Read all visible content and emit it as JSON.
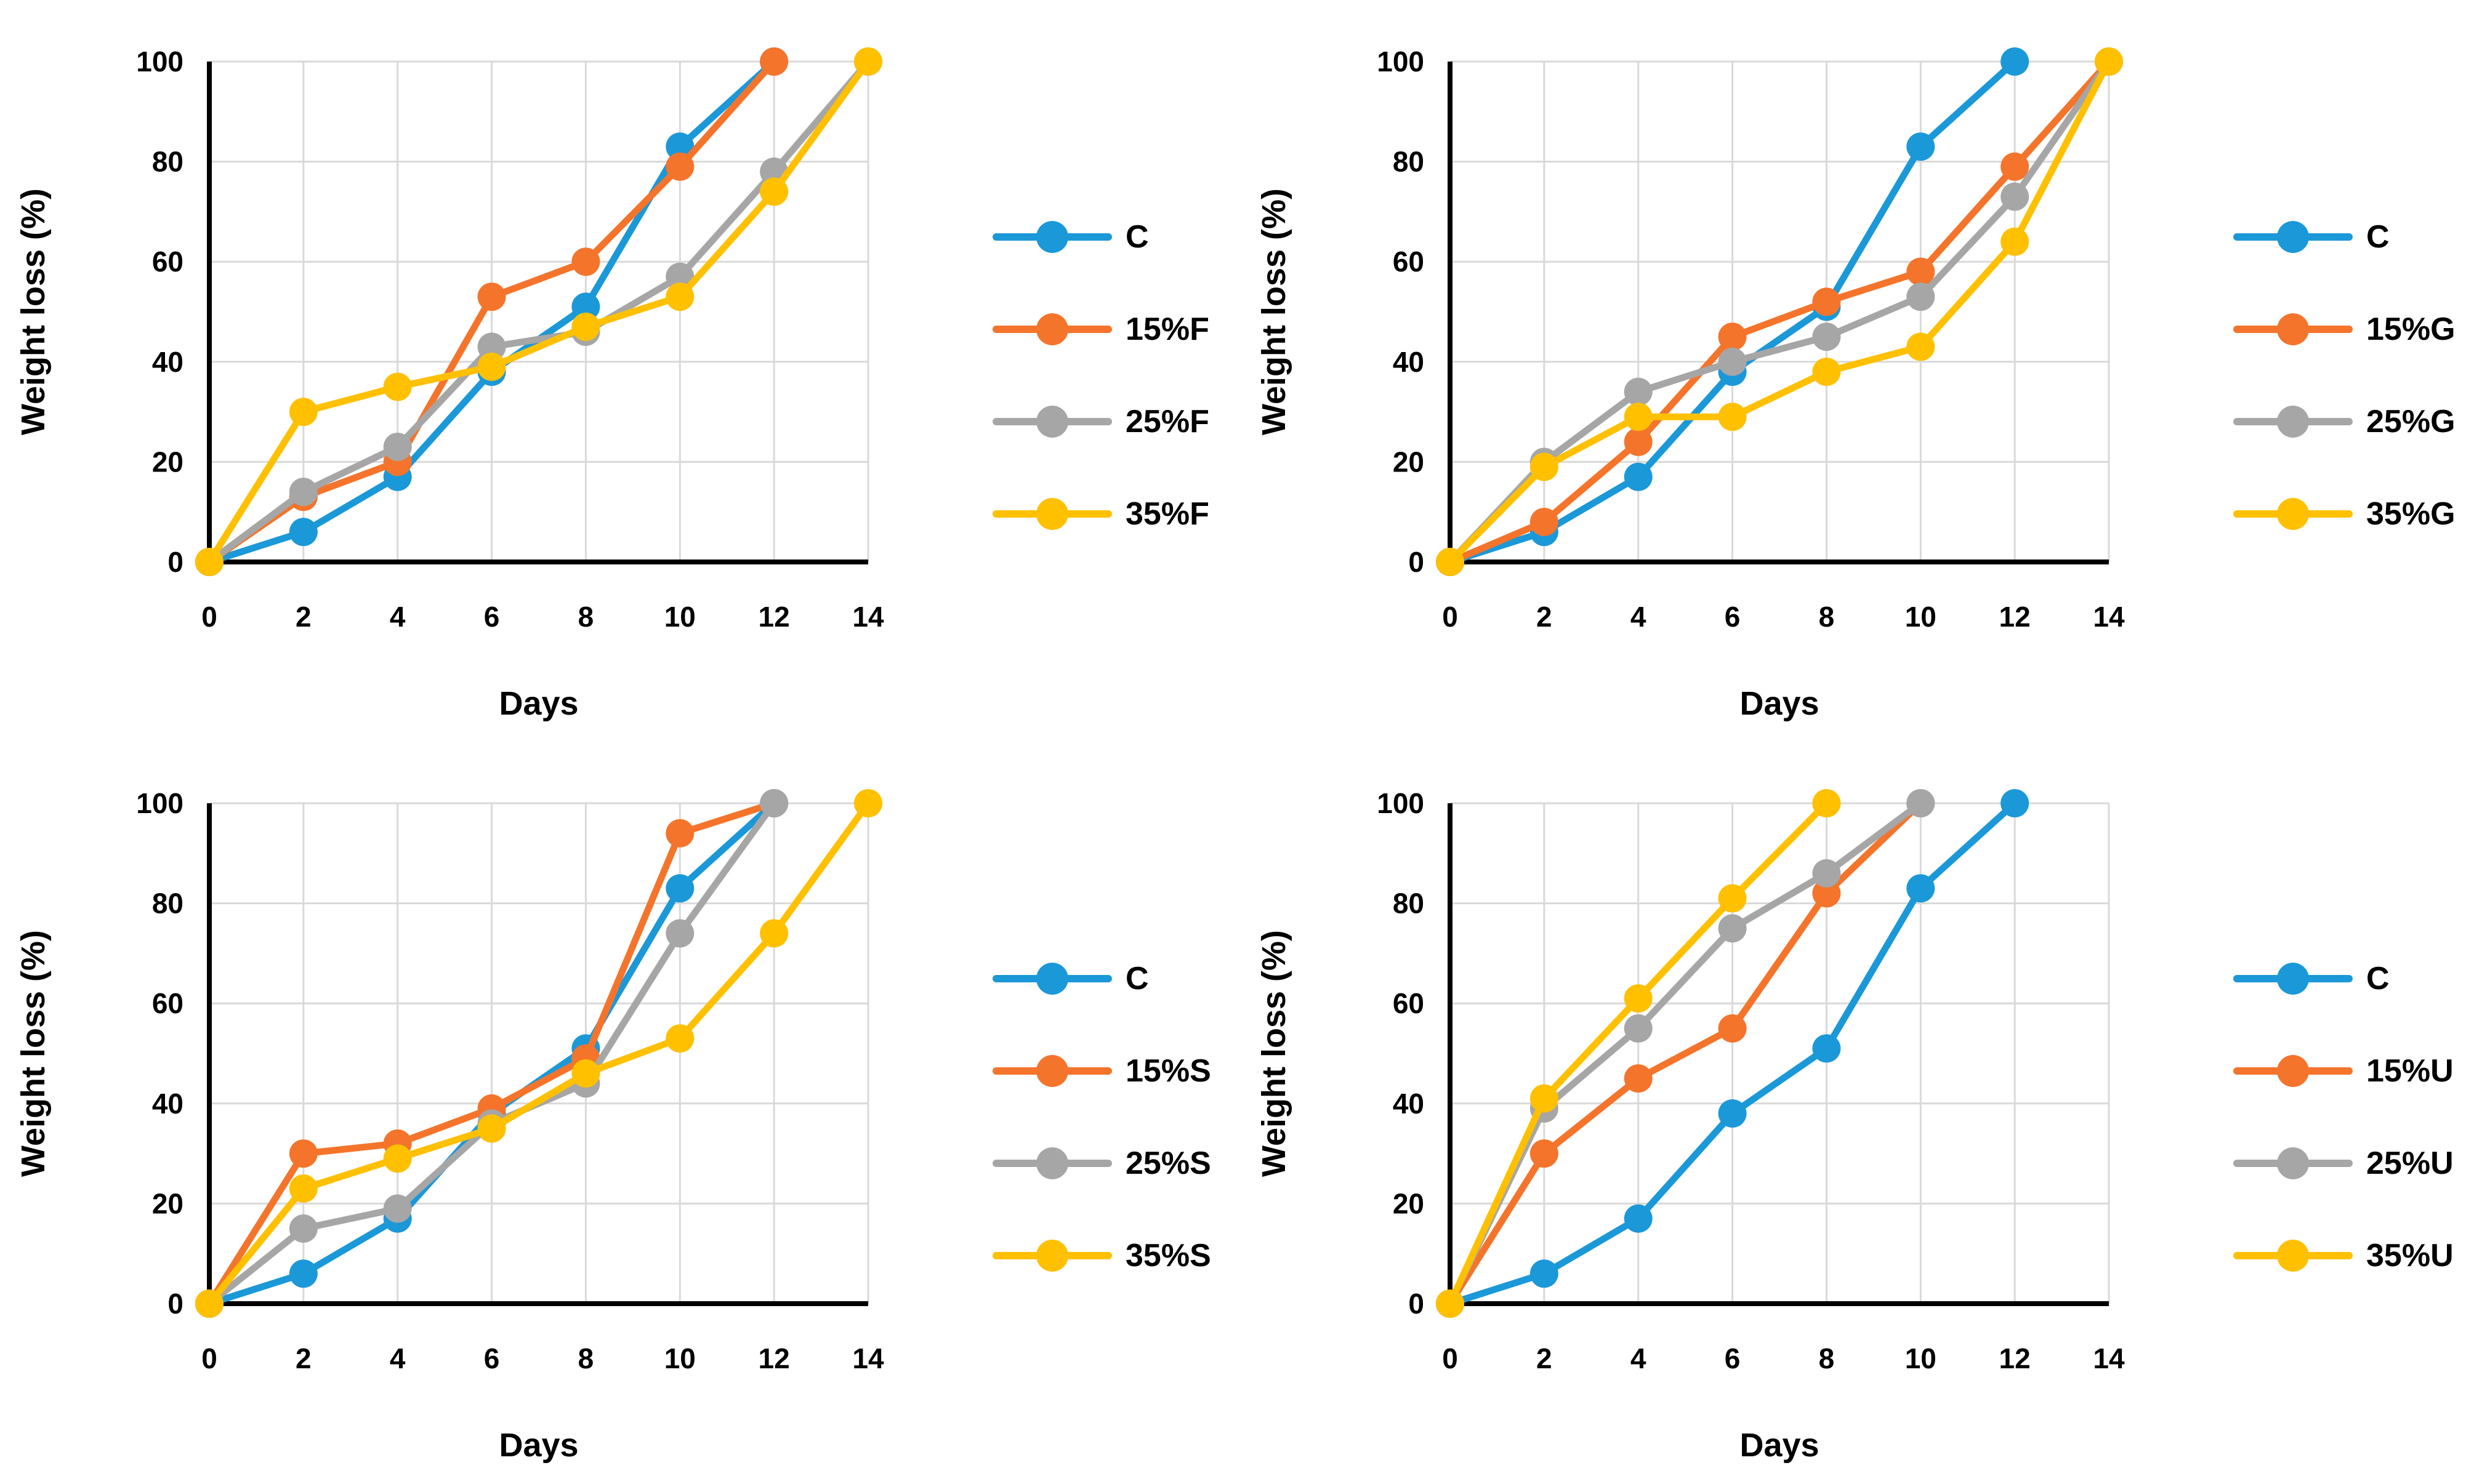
{
  "figure": {
    "type": "multi-panel-line-chart",
    "panel_count": 4,
    "background": "#ffffff",
    "grid_color": "#d9d9d9",
    "axis_color": "#000000",
    "text_color": "#000000"
  },
  "colors": {
    "C": "#1b98d8",
    "p15": "#f4742b",
    "p25": "#a6a6a6",
    "p35": "#ffc000"
  },
  "chart_data": [
    {
      "id": "F",
      "type": "line",
      "title": "",
      "xlabel": "Days",
      "ylabel": "Weight loss (%)",
      "xlim": [
        0,
        14
      ],
      "ylim": [
        0,
        100
      ],
      "x_ticks": [
        0,
        2,
        4,
        6,
        8,
        10,
        12,
        14
      ],
      "y_ticks": [
        0,
        20,
        40,
        60,
        80,
        100
      ],
      "grid": true,
      "legend_position": "right",
      "series": [
        {
          "name": "C",
          "color_key": "C",
          "days": [
            0,
            2,
            4,
            6,
            8,
            10,
            12
          ],
          "values": [
            0,
            6,
            17,
            38,
            51,
            83,
            100
          ]
        },
        {
          "name": "15%F",
          "color_key": "p15",
          "days": [
            0,
            2,
            4,
            6,
            8,
            10,
            12
          ],
          "values": [
            0,
            13,
            20,
            53,
            60,
            79,
            100
          ]
        },
        {
          "name": "25%F",
          "color_key": "p25",
          "days": [
            0,
            2,
            4,
            6,
            8,
            10,
            12,
            14
          ],
          "values": [
            0,
            14,
            23,
            43,
            46,
            57,
            78,
            100
          ]
        },
        {
          "name": "35%F",
          "color_key": "p35",
          "days": [
            0,
            2,
            4,
            6,
            8,
            10,
            12,
            14
          ],
          "values": [
            0,
            30,
            35,
            39,
            47,
            53,
            74,
            100
          ]
        }
      ]
    },
    {
      "id": "G",
      "type": "line",
      "title": "",
      "xlabel": "Days",
      "ylabel": "Weight loss (%)",
      "xlim": [
        0,
        14
      ],
      "ylim": [
        0,
        100
      ],
      "x_ticks": [
        0,
        2,
        4,
        6,
        8,
        10,
        12,
        14
      ],
      "y_ticks": [
        0,
        20,
        40,
        60,
        80,
        100
      ],
      "grid": true,
      "legend_position": "right",
      "series": [
        {
          "name": "C",
          "color_key": "C",
          "days": [
            0,
            2,
            4,
            6,
            8,
            10,
            12
          ],
          "values": [
            0,
            6,
            17,
            38,
            51,
            83,
            100
          ]
        },
        {
          "name": "15%G",
          "color_key": "p15",
          "days": [
            0,
            2,
            4,
            6,
            8,
            10,
            12,
            14
          ],
          "values": [
            0,
            8,
            24,
            45,
            52,
            58,
            79,
            100
          ]
        },
        {
          "name": "25%G",
          "color_key": "p25",
          "days": [
            0,
            2,
            4,
            6,
            8,
            10,
            12,
            14
          ],
          "values": [
            0,
            20,
            34,
            40,
            45,
            53,
            73,
            100
          ]
        },
        {
          "name": "35%G",
          "color_key": "p35",
          "days": [
            0,
            2,
            4,
            6,
            8,
            10,
            12,
            14
          ],
          "values": [
            0,
            19,
            29,
            29,
            38,
            43,
            64,
            100
          ]
        }
      ]
    },
    {
      "id": "S",
      "type": "line",
      "title": "",
      "xlabel": "Days",
      "ylabel": "Weight loss (%)",
      "xlim": [
        0,
        14
      ],
      "ylim": [
        0,
        100
      ],
      "x_ticks": [
        0,
        2,
        4,
        6,
        8,
        10,
        12,
        14
      ],
      "y_ticks": [
        0,
        20,
        40,
        60,
        80,
        100
      ],
      "grid": true,
      "legend_position": "right",
      "series": [
        {
          "name": "C",
          "color_key": "C",
          "days": [
            0,
            2,
            4,
            6,
            8,
            10,
            12
          ],
          "values": [
            0,
            6,
            17,
            38,
            51,
            83,
            100
          ]
        },
        {
          "name": "15%S",
          "color_key": "p15",
          "days": [
            0,
            2,
            4,
            6,
            8,
            10,
            12
          ],
          "values": [
            0,
            30,
            32,
            39,
            49,
            94,
            100
          ]
        },
        {
          "name": "25%S",
          "color_key": "p25",
          "days": [
            0,
            2,
            4,
            6,
            8,
            10,
            12
          ],
          "values": [
            0,
            15,
            19,
            36,
            44,
            74,
            100
          ]
        },
        {
          "name": "35%S",
          "color_key": "p35",
          "days": [
            0,
            2,
            4,
            6,
            8,
            10,
            12,
            14
          ],
          "values": [
            0,
            23,
            29,
            35,
            46,
            53,
            74,
            100
          ]
        }
      ]
    },
    {
      "id": "U",
      "type": "line",
      "title": "",
      "xlabel": "Days",
      "ylabel": "Weight loss (%)",
      "xlim": [
        0,
        14
      ],
      "ylim": [
        0,
        100
      ],
      "x_ticks": [
        0,
        2,
        4,
        6,
        8,
        10,
        12,
        14
      ],
      "y_ticks": [
        0,
        20,
        40,
        60,
        80,
        100
      ],
      "grid": true,
      "legend_position": "right",
      "series": [
        {
          "name": "C",
          "color_key": "C",
          "days": [
            0,
            2,
            4,
            6,
            8,
            10,
            12
          ],
          "values": [
            0,
            6,
            17,
            38,
            51,
            83,
            100
          ]
        },
        {
          "name": "15%U",
          "color_key": "p15",
          "days": [
            0,
            2,
            4,
            6,
            8,
            10
          ],
          "values": [
            0,
            30,
            45,
            55,
            82,
            100
          ]
        },
        {
          "name": "25%U",
          "color_key": "p25",
          "days": [
            0,
            2,
            4,
            6,
            8,
            10
          ],
          "values": [
            0,
            39,
            55,
            75,
            86,
            100
          ]
        },
        {
          "name": "35%U",
          "color_key": "p35",
          "days": [
            0,
            2,
            4,
            6,
            8
          ],
          "values": [
            0,
            41,
            61,
            81,
            100
          ]
        }
      ]
    }
  ]
}
